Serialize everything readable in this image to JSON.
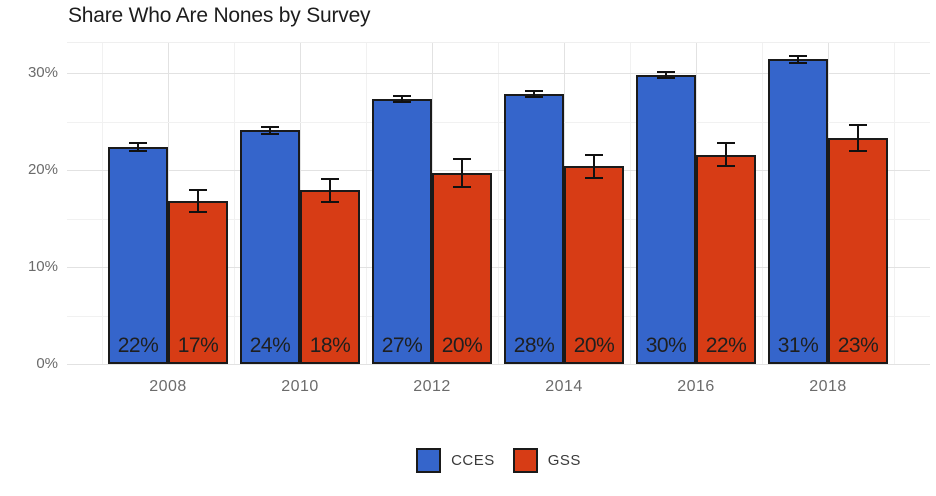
{
  "title": "Share Who Are Nones by Survey",
  "chart_data": {
    "type": "bar",
    "title": "Share Who Are Nones by Survey",
    "subtitle": "",
    "xlabel": "",
    "ylabel": "",
    "grid": true,
    "legend_position": "bottom",
    "error_bars": true,
    "ylim": [
      0,
      33.1
    ],
    "categories": [
      "2008",
      "2010",
      "2012",
      "2014",
      "2016",
      "2018"
    ],
    "series": [
      {
        "name": "CCES",
        "color": "#3565CB",
        "values": [
          22.4,
          24.1,
          27.3,
          27.8,
          29.8,
          31.4
        ],
        "errors": [
          0.4,
          0.35,
          0.3,
          0.3,
          0.3,
          0.35
        ],
        "labels": [
          "22%",
          "24%",
          "27%",
          "28%",
          "30%",
          "31%"
        ]
      },
      {
        "name": "GSS",
        "color": "#D73C15",
        "values": [
          16.8,
          17.9,
          19.7,
          20.4,
          21.6,
          23.3
        ],
        "errors": [
          1.15,
          1.2,
          1.4,
          1.2,
          1.2,
          1.3
        ],
        "labels": [
          "17%",
          "18%",
          "20%",
          "20%",
          "22%",
          "23%"
        ]
      }
    ],
    "y_ticks": [
      {
        "value": 0,
        "label": "0%"
      },
      {
        "value": 10,
        "label": "10%"
      },
      {
        "value": 20,
        "label": "20%"
      },
      {
        "value": 30,
        "label": "30%"
      }
    ],
    "y_minor": [
      5,
      15,
      25
    ],
    "bar_outline_color": "#1a1a1a",
    "bar_label_color": "#1f1f1f",
    "axis_text_color": "#6b6b6b"
  },
  "legend": {
    "items": [
      {
        "label": "CCES",
        "color": "#3565CB"
      },
      {
        "label": "GSS",
        "color": "#D73C15"
      }
    ]
  }
}
